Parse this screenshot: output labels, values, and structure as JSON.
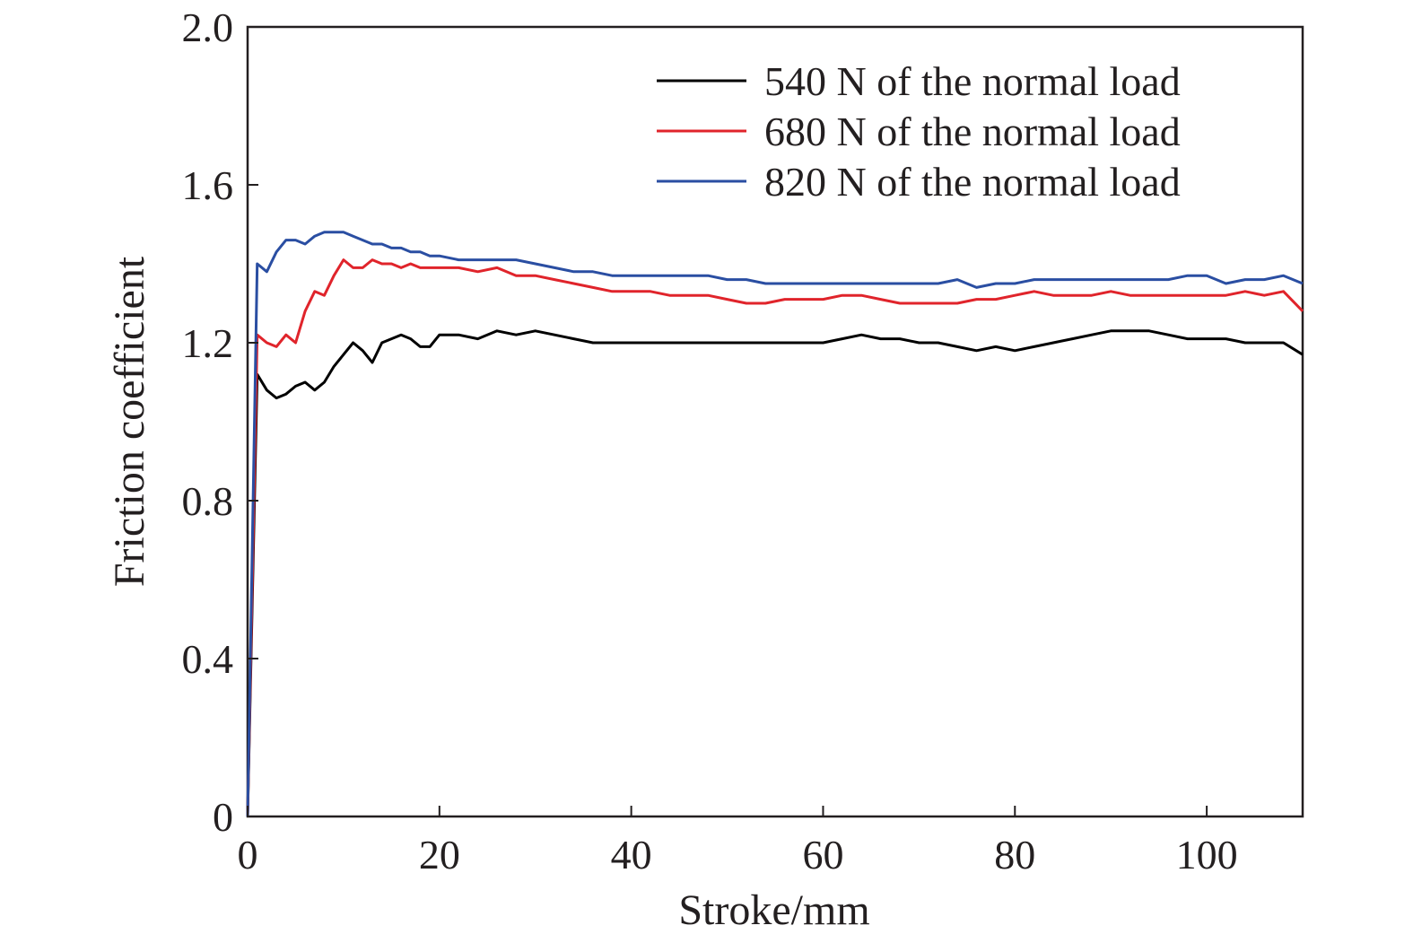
{
  "chart_data": {
    "type": "line",
    "xlabel": "Stroke/mm",
    "ylabel": "Friction coefficient",
    "xlim": [
      0,
      110
    ],
    "ylim": [
      0,
      2.0
    ],
    "x_ticks": [
      0,
      20,
      40,
      60,
      80,
      100
    ],
    "x_tick_labels": [
      "0",
      "20",
      "40",
      "60",
      "80",
      "100"
    ],
    "y_ticks": [
      0,
      0.4,
      0.8,
      1.2,
      1.6,
      2.0
    ],
    "y_tick_labels": [
      "0",
      "0.4",
      "0.8",
      "1.2",
      "1.6",
      "2.0"
    ],
    "grid": false,
    "legend_position": "top-right",
    "series": [
      {
        "name": "540 N of the normal load",
        "color": "#000000",
        "x": [
          0,
          1,
          2,
          3,
          4,
          5,
          6,
          7,
          8,
          9,
          10,
          11,
          12,
          13,
          14,
          15,
          16,
          17,
          18,
          19,
          20,
          22,
          24,
          26,
          28,
          30,
          32,
          34,
          36,
          38,
          40,
          42,
          44,
          46,
          48,
          50,
          52,
          54,
          56,
          58,
          60,
          62,
          64,
          66,
          68,
          70,
          72,
          74,
          76,
          78,
          80,
          82,
          84,
          86,
          88,
          90,
          92,
          94,
          96,
          98,
          100,
          102,
          104,
          106,
          108,
          110
        ],
        "y": [
          0.0,
          1.12,
          1.08,
          1.06,
          1.07,
          1.09,
          1.1,
          1.08,
          1.1,
          1.14,
          1.17,
          1.2,
          1.18,
          1.15,
          1.2,
          1.21,
          1.22,
          1.21,
          1.19,
          1.19,
          1.22,
          1.22,
          1.21,
          1.23,
          1.22,
          1.23,
          1.22,
          1.21,
          1.2,
          1.2,
          1.2,
          1.2,
          1.2,
          1.2,
          1.2,
          1.2,
          1.2,
          1.2,
          1.2,
          1.2,
          1.2,
          1.21,
          1.22,
          1.21,
          1.21,
          1.2,
          1.2,
          1.19,
          1.18,
          1.19,
          1.18,
          1.19,
          1.2,
          1.21,
          1.22,
          1.23,
          1.23,
          1.23,
          1.22,
          1.21,
          1.21,
          1.21,
          1.2,
          1.2,
          1.2,
          1.17
        ]
      },
      {
        "name": "680 N of the normal load",
        "color": "#e0242b",
        "x": [
          0,
          1,
          2,
          3,
          4,
          5,
          6,
          7,
          8,
          9,
          10,
          11,
          12,
          13,
          14,
          15,
          16,
          17,
          18,
          19,
          20,
          22,
          24,
          26,
          28,
          30,
          32,
          34,
          36,
          38,
          40,
          42,
          44,
          46,
          48,
          50,
          52,
          54,
          56,
          58,
          60,
          62,
          64,
          66,
          68,
          70,
          72,
          74,
          76,
          78,
          80,
          82,
          84,
          86,
          88,
          90,
          92,
          94,
          96,
          98,
          100,
          102,
          104,
          106,
          108,
          110
        ],
        "y": [
          0.0,
          1.22,
          1.2,
          1.19,
          1.22,
          1.2,
          1.28,
          1.33,
          1.32,
          1.37,
          1.41,
          1.39,
          1.39,
          1.41,
          1.4,
          1.4,
          1.39,
          1.4,
          1.39,
          1.39,
          1.39,
          1.39,
          1.38,
          1.39,
          1.37,
          1.37,
          1.36,
          1.35,
          1.34,
          1.33,
          1.33,
          1.33,
          1.32,
          1.32,
          1.32,
          1.31,
          1.3,
          1.3,
          1.31,
          1.31,
          1.31,
          1.32,
          1.32,
          1.31,
          1.3,
          1.3,
          1.3,
          1.3,
          1.31,
          1.31,
          1.32,
          1.33,
          1.32,
          1.32,
          1.32,
          1.33,
          1.32,
          1.32,
          1.32,
          1.32,
          1.32,
          1.32,
          1.33,
          1.32,
          1.33,
          1.28
        ]
      },
      {
        "name": "820 N of the normal load",
        "color": "#2a4ea2",
        "x": [
          0,
          1,
          2,
          3,
          4,
          5,
          6,
          7,
          8,
          9,
          10,
          11,
          12,
          13,
          14,
          15,
          16,
          17,
          18,
          19,
          20,
          22,
          24,
          26,
          28,
          30,
          32,
          34,
          36,
          38,
          40,
          42,
          44,
          46,
          48,
          50,
          52,
          54,
          56,
          58,
          60,
          62,
          64,
          66,
          68,
          70,
          72,
          74,
          76,
          78,
          80,
          82,
          84,
          86,
          88,
          90,
          92,
          94,
          96,
          98,
          100,
          102,
          104,
          106,
          108,
          110
        ],
        "y": [
          0.0,
          1.4,
          1.38,
          1.43,
          1.46,
          1.46,
          1.45,
          1.47,
          1.48,
          1.48,
          1.48,
          1.47,
          1.46,
          1.45,
          1.45,
          1.44,
          1.44,
          1.43,
          1.43,
          1.42,
          1.42,
          1.41,
          1.41,
          1.41,
          1.41,
          1.4,
          1.39,
          1.38,
          1.38,
          1.37,
          1.37,
          1.37,
          1.37,
          1.37,
          1.37,
          1.36,
          1.36,
          1.35,
          1.35,
          1.35,
          1.35,
          1.35,
          1.35,
          1.35,
          1.35,
          1.35,
          1.35,
          1.36,
          1.34,
          1.35,
          1.35,
          1.36,
          1.36,
          1.36,
          1.36,
          1.36,
          1.36,
          1.36,
          1.36,
          1.37,
          1.37,
          1.35,
          1.36,
          1.36,
          1.37,
          1.35
        ]
      }
    ]
  }
}
